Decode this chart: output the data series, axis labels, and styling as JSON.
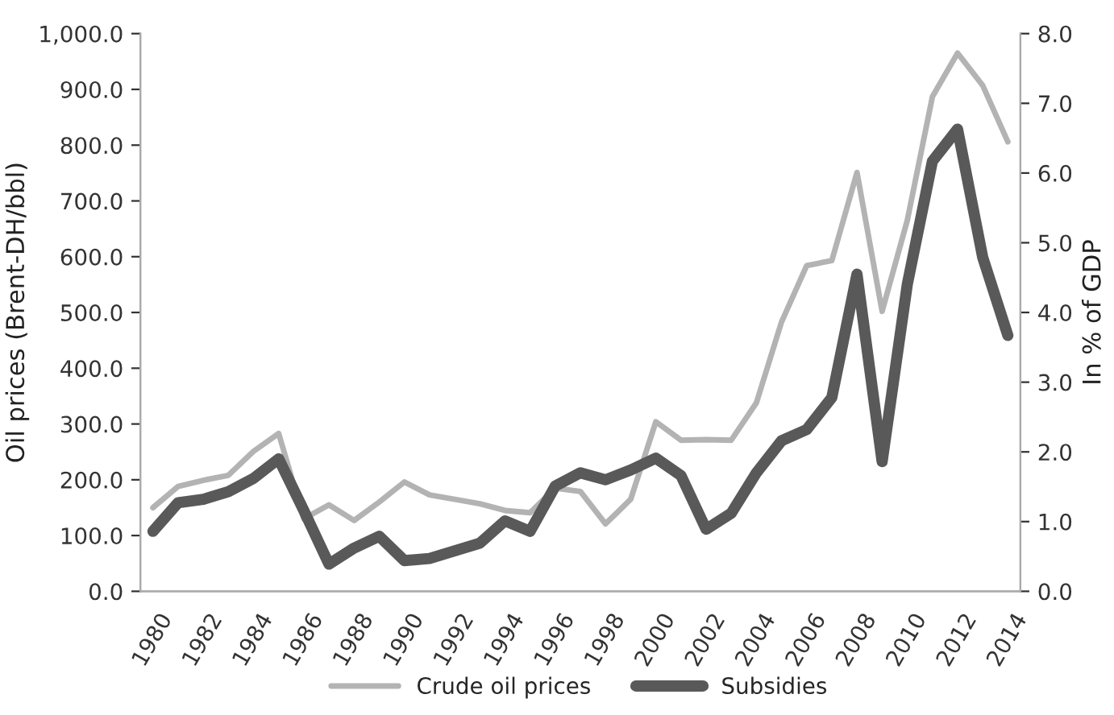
{
  "chart_data": {
    "type": "line",
    "categories": [
      "1980",
      null,
      "1982",
      null,
      "1984",
      null,
      "1986",
      null,
      "1988",
      null,
      "1990",
      null,
      "1992",
      null,
      "1994",
      null,
      "1996",
      null,
      "1998",
      null,
      "2000",
      null,
      "2002",
      null,
      "2004",
      null,
      "2006",
      null,
      "2008",
      null,
      "2010",
      null,
      "2012",
      null,
      "2014"
    ],
    "series": [
      {
        "name": "Crude oil prices",
        "color": "#b3b3b3",
        "values": [
          150,
          188,
          199,
          208,
          251,
          283,
          130,
          155,
          127,
          160,
          196,
          173,
          165,
          157,
          145,
          141,
          185,
          179,
          121,
          165,
          304,
          271,
          272,
          271,
          338,
          483,
          584,
          593,
          751,
          502,
          665,
          887,
          965,
          907,
          806
        ]
      },
      {
        "name": "Subsidies",
        "color": "#595959",
        "axis": "y2",
        "values": [
          0.86,
          1.27,
          1.32,
          1.43,
          1.62,
          1.9,
          1.16,
          0.39,
          0.62,
          0.79,
          0.44,
          0.47,
          0.58,
          0.69,
          1.01,
          0.86,
          1.51,
          1.7,
          1.6,
          1.74,
          1.91,
          1.66,
          0.89,
          1.12,
          1.7,
          2.16,
          2.32,
          2.78,
          4.55,
          1.86,
          4.4,
          6.17,
          6.63,
          4.79,
          3.67
        ]
      }
    ],
    "ylabel": "Oil prices (Brent-DH/bbl)",
    "y2label": "In % of GDP",
    "ylim": [
      0,
      1000
    ],
    "yticks": [
      {
        "value": 0,
        "label": "0.0"
      },
      {
        "value": 100,
        "label": "100.0"
      },
      {
        "value": 200,
        "label": "200.0"
      },
      {
        "value": 300,
        "label": "300.0"
      },
      {
        "value": 400,
        "label": "400.0"
      },
      {
        "value": 500,
        "label": "500.0"
      },
      {
        "value": 600,
        "label": "600.0"
      },
      {
        "value": 700,
        "label": "700.0"
      },
      {
        "value": 800,
        "label": "800.0"
      },
      {
        "value": 900,
        "label": "900.0"
      },
      {
        "value": 1000,
        "label": "1,000.0"
      }
    ],
    "y2lim": [
      0,
      8
    ],
    "y2ticks": [
      {
        "value": 0,
        "label": "0.0"
      },
      {
        "value": 1,
        "label": "1.0"
      },
      {
        "value": 2,
        "label": "2.0"
      },
      {
        "value": 3,
        "label": "3.0"
      },
      {
        "value": 4,
        "label": "4.0"
      },
      {
        "value": 5,
        "label": "5.0"
      },
      {
        "value": 6,
        "label": "6.0"
      },
      {
        "value": 7,
        "label": "7.0"
      },
      {
        "value": 8,
        "label": "8.0"
      }
    ],
    "legend": "bottom",
    "grid": false,
    "marker": "none",
    "line_style": "solid"
  }
}
